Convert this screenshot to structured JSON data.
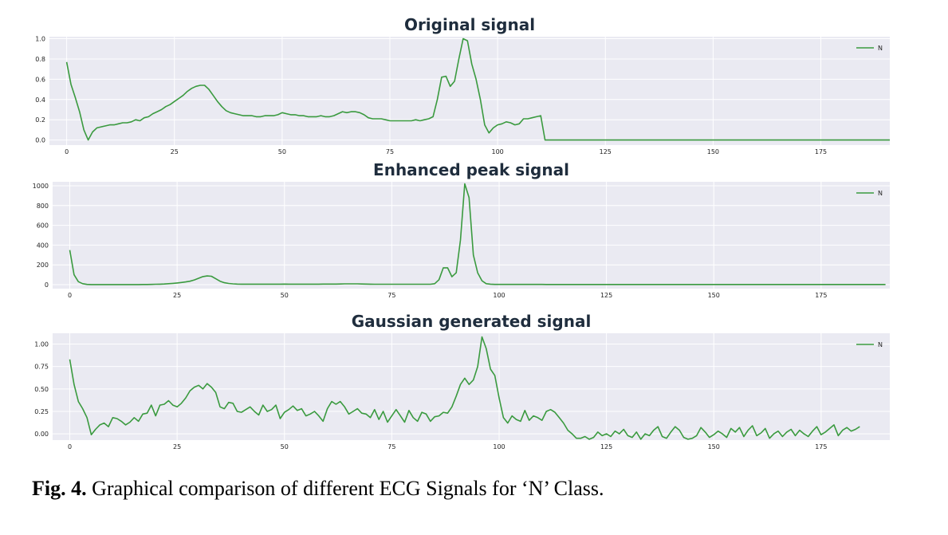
{
  "figure_caption": {
    "label": "Fig. 4.",
    "text": " Graphical comparison of different ECG Signals for ‘N’ Class."
  },
  "colors": {
    "line": "#3a9a3f",
    "plot_bg": "#eaeaf2",
    "grid": "#ffffff"
  },
  "chart_data": [
    {
      "type": "line",
      "title": "Original signal",
      "xlabel": "",
      "ylabel": "",
      "xlim": [
        -4,
        191
      ],
      "ylim": [
        -0.05,
        1.02
      ],
      "xticks": [
        0,
        25,
        50,
        75,
        100,
        125,
        150,
        175
      ],
      "xtick_labels": [
        "0",
        "25",
        "50",
        "75",
        "100",
        "125",
        "150",
        "175"
      ],
      "yticks": [
        0.0,
        0.2,
        0.4,
        0.6,
        0.8,
        1.0
      ],
      "ytick_labels": [
        "0.0",
        "0.2",
        "0.4",
        "0.6",
        "0.8",
        "1.0"
      ],
      "grid": true,
      "legend_position": "top-right",
      "series": [
        {
          "name": "N",
          "y": [
            0.77,
            0.55,
            0.42,
            0.28,
            0.1,
            0.0,
            0.08,
            0.12,
            0.13,
            0.14,
            0.15,
            0.15,
            0.16,
            0.17,
            0.17,
            0.18,
            0.2,
            0.19,
            0.22,
            0.23,
            0.26,
            0.28,
            0.3,
            0.33,
            0.35,
            0.38,
            0.41,
            0.44,
            0.48,
            0.51,
            0.53,
            0.54,
            0.54,
            0.5,
            0.44,
            0.38,
            0.33,
            0.29,
            0.27,
            0.26,
            0.25,
            0.24,
            0.24,
            0.24,
            0.23,
            0.23,
            0.24,
            0.24,
            0.24,
            0.25,
            0.27,
            0.26,
            0.25,
            0.25,
            0.24,
            0.24,
            0.23,
            0.23,
            0.23,
            0.24,
            0.23,
            0.23,
            0.24,
            0.26,
            0.28,
            0.27,
            0.28,
            0.28,
            0.27,
            0.25,
            0.22,
            0.21,
            0.21,
            0.21,
            0.2,
            0.19,
            0.19,
            0.19,
            0.19,
            0.19,
            0.19,
            0.2,
            0.19,
            0.2,
            0.21,
            0.23,
            0.4,
            0.62,
            0.63,
            0.53,
            0.58,
            0.8,
            1.0,
            0.98,
            0.75,
            0.6,
            0.4,
            0.15,
            0.07,
            0.12,
            0.15,
            0.16,
            0.18,
            0.17,
            0.15,
            0.16,
            0.21,
            0.21,
            0.22,
            0.23,
            0.24,
            0.0,
            0.0,
            0.0,
            0.0,
            0.0,
            0.0,
            0.0,
            0.0,
            0.0,
            0.0,
            0.0,
            0.0,
            0.0,
            0.0,
            0.0,
            0.0,
            0.0,
            0.0,
            0.0,
            0.0,
            0.0,
            0.0,
            0.0,
            0.0,
            0.0,
            0.0,
            0.0,
            0.0,
            0.0,
            0.0,
            0.0,
            0.0,
            0.0,
            0.0,
            0.0,
            0.0,
            0.0,
            0.0,
            0.0,
            0.0,
            0.0,
            0.0,
            0.0,
            0.0,
            0.0,
            0.0,
            0.0,
            0.0,
            0.0,
            0.0,
            0.0,
            0.0,
            0.0,
            0.0,
            0.0,
            0.0,
            0.0,
            0.0,
            0.0,
            0.0,
            0.0,
            0.0,
            0.0,
            0.0,
            0.0,
            0.0,
            0.0,
            0.0,
            0.0,
            0.0,
            0.0,
            0.0,
            0.0,
            0.0,
            0.0,
            0.0,
            0.0,
            0.0,
            0.0,
            0.0,
            0.0
          ]
        }
      ]
    },
    {
      "type": "line",
      "title": "Enhanced peak signal",
      "xlabel": "",
      "ylabel": "",
      "xlim": [
        -4,
        191
      ],
      "ylim": [
        -40,
        1040
      ],
      "xticks": [
        0,
        25,
        50,
        75,
        100,
        125,
        150,
        175
      ],
      "xtick_labels": [
        "0",
        "25",
        "50",
        "75",
        "100",
        "125",
        "150",
        "175"
      ],
      "yticks": [
        0,
        200,
        400,
        600,
        800,
        1000
      ],
      "ytick_labels": [
        "0",
        "200",
        "400",
        "600",
        "800",
        "1000"
      ],
      "grid": true,
      "legend_position": "top-right",
      "series": [
        {
          "name": "N",
          "y": [
            350,
            100,
            30,
            10,
            3,
            1,
            1,
            1,
            1,
            1,
            1,
            1,
            1,
            1,
            1,
            1,
            1,
            2,
            2,
            3,
            4,
            5,
            7,
            10,
            13,
            17,
            22,
            28,
            35,
            48,
            65,
            82,
            88,
            85,
            60,
            35,
            20,
            12,
            8,
            6,
            5,
            5,
            5,
            5,
            5,
            5,
            5,
            5,
            5,
            5,
            6,
            5,
            5,
            5,
            5,
            5,
            5,
            5,
            5,
            6,
            6,
            6,
            6,
            7,
            8,
            8,
            8,
            8,
            7,
            6,
            5,
            4,
            4,
            4,
            4,
            4,
            4,
            4,
            4,
            4,
            4,
            4,
            4,
            4,
            4,
            10,
            50,
            170,
            170,
            80,
            120,
            450,
            1020,
            880,
            300,
            120,
            40,
            10,
            5,
            3,
            3,
            3,
            3,
            3,
            3,
            3,
            3,
            3,
            3,
            3,
            3,
            2,
            2,
            2,
            2,
            2,
            2,
            2,
            2,
            2,
            2,
            2,
            2,
            2,
            2,
            2,
            2,
            2,
            2,
            2,
            2,
            2,
            2,
            2,
            2,
            2,
            2,
            2,
            2,
            2,
            2,
            2,
            2,
            2,
            2,
            2,
            2,
            2,
            2,
            2,
            2,
            2,
            2,
            2,
            2,
            2,
            2,
            2,
            2,
            2,
            2,
            2,
            2,
            2,
            2,
            2,
            2,
            2,
            2,
            2,
            2,
            2,
            2,
            2,
            2,
            2,
            2,
            2,
            2,
            2,
            2,
            2,
            2,
            2,
            2,
            2,
            2,
            2,
            2,
            2,
            2
          ]
        }
      ]
    },
    {
      "type": "line",
      "title": "Gaussian generated signal",
      "xlabel": "",
      "ylabel": "",
      "xlim": [
        -4,
        191
      ],
      "ylim": [
        -0.07,
        1.12
      ],
      "xticks": [
        0,
        25,
        50,
        75,
        100,
        125,
        150,
        175
      ],
      "xtick_labels": [
        "0",
        "25",
        "50",
        "75",
        "100",
        "125",
        "150",
        "175"
      ],
      "yticks": [
        0.0,
        0.25,
        0.5,
        0.75,
        1.0
      ],
      "ytick_labels": [
        "0.00",
        "0.25",
        "0.50",
        "0.75",
        "1.00"
      ],
      "grid": true,
      "legend_position": "top-right",
      "series": [
        {
          "name": "N",
          "y": [
            0.83,
            0.55,
            0.36,
            0.28,
            0.18,
            -0.01,
            0.05,
            0.1,
            0.12,
            0.08,
            0.18,
            0.17,
            0.14,
            0.1,
            0.13,
            0.18,
            0.14,
            0.22,
            0.23,
            0.32,
            0.2,
            0.32,
            0.33,
            0.37,
            0.32,
            0.3,
            0.34,
            0.4,
            0.48,
            0.52,
            0.54,
            0.5,
            0.56,
            0.52,
            0.46,
            0.3,
            0.28,
            0.35,
            0.34,
            0.25,
            0.24,
            0.27,
            0.3,
            0.25,
            0.21,
            0.32,
            0.25,
            0.27,
            0.32,
            0.17,
            0.24,
            0.27,
            0.31,
            0.26,
            0.28,
            0.2,
            0.22,
            0.25,
            0.2,
            0.14,
            0.28,
            0.36,
            0.33,
            0.36,
            0.3,
            0.22,
            0.25,
            0.28,
            0.23,
            0.22,
            0.18,
            0.27,
            0.16,
            0.25,
            0.13,
            0.2,
            0.27,
            0.2,
            0.13,
            0.26,
            0.18,
            0.14,
            0.24,
            0.22,
            0.14,
            0.19,
            0.2,
            0.24,
            0.23,
            0.3,
            0.42,
            0.55,
            0.62,
            0.55,
            0.6,
            0.75,
            1.08,
            0.95,
            0.72,
            0.65,
            0.4,
            0.18,
            0.12,
            0.2,
            0.16,
            0.14,
            0.26,
            0.15,
            0.2,
            0.18,
            0.15,
            0.25,
            0.27,
            0.24,
            0.18,
            0.12,
            0.04,
            0.0,
            -0.05,
            -0.05,
            -0.03,
            -0.06,
            -0.04,
            0.02,
            -0.02,
            0.0,
            -0.03,
            0.03,
            0.0,
            0.05,
            -0.02,
            -0.04,
            0.02,
            -0.06,
            0.0,
            -0.02,
            0.04,
            0.08,
            -0.03,
            -0.05,
            0.02,
            0.08,
            0.04,
            -0.04,
            -0.06,
            -0.05,
            -0.02,
            0.07,
            0.02,
            -0.04,
            -0.01,
            0.03,
            0.0,
            -0.04,
            0.06,
            0.02,
            0.07,
            -0.03,
            0.04,
            0.09,
            -0.02,
            0.01,
            0.06,
            -0.05,
            0.0,
            0.03,
            -0.03,
            0.02,
            0.05,
            -0.02,
            0.04,
            0.0,
            -0.03,
            0.03,
            0.08,
            -0.01,
            0.02,
            0.06,
            0.1,
            -0.02,
            0.04,
            0.07,
            0.03,
            0.05,
            0.08
          ]
        }
      ]
    }
  ]
}
